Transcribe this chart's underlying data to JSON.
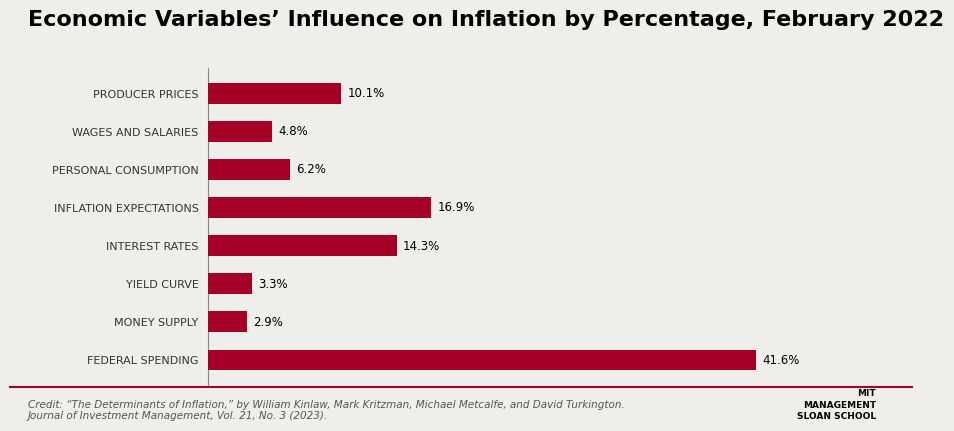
{
  "title": "Economic Variables’ Influence on Inflation by Percentage, February 2022",
  "categories": [
    "FEDERAL SPENDING",
    "MONEY SUPPLY",
    "YIELD CURVE",
    "INTEREST RATES",
    "INFLATION EXPECTATIONS",
    "PERSONAL CONSUMPTION",
    "WAGES AND SALARIES",
    "PRODUCER PRICES"
  ],
  "values": [
    41.6,
    2.9,
    3.3,
    14.3,
    16.9,
    6.2,
    4.8,
    10.1
  ],
  "labels": [
    "41.6%",
    "2.9%",
    "3.3%",
    "14.3%",
    "16.9%",
    "6.2%",
    "4.8%",
    "10.1%"
  ],
  "bar_color": "#A50026",
  "background_color": "#F0EEEB",
  "title_fontsize": 16,
  "label_fontsize": 8,
  "bar_label_fontsize": 8.5,
  "credit_text": "Credit: “The Determinants of Inflation,” by William Kinlaw, Mark Kritzman, Michael Metcalfe, and David Turkington.\nJournal of Investment Management, Vol. 21, No. 3 (2023).",
  "credit_fontsize": 7.5,
  "xlim": [
    0,
    48
  ]
}
